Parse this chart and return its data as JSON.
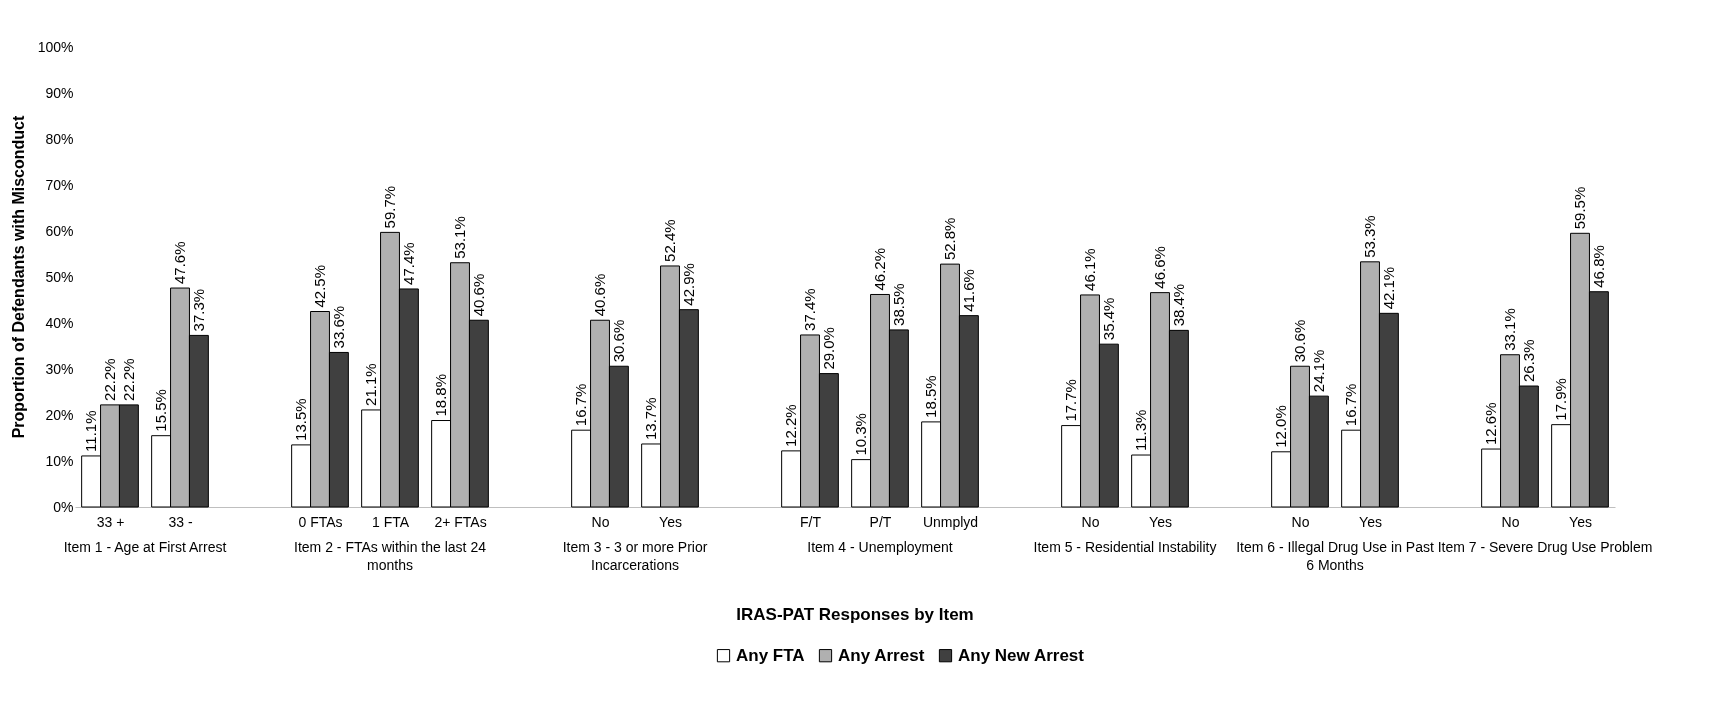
{
  "chart_data": {
    "type": "bar",
    "xlabel": "IRAS-PAT Responses by Item",
    "ylabel": "Proportion of Defendants with Misconduct",
    "categories": [
      "33 +",
      "33 -",
      null,
      "0 FTAs",
      "1 FTA",
      "2+ FTAs",
      null,
      "No",
      "Yes",
      null,
      "F/T",
      "P/T",
      "Unmplyd",
      null,
      "No",
      "Yes",
      null,
      "No",
      "Yes",
      null,
      "No",
      "Yes"
    ],
    "annotations": [
      "Item 1 - Age at First Arrest",
      "Item 2 - FTAs within the last 24 months",
      "Item 3 - 3 or more Prior Incarcerations",
      "Item 4 - Unemployment",
      "Item 5 - Residential Instability",
      "Item 6 - Illegal Drug Use in Past 6 Months",
      "Item 7 - Severe Drug Use Problem"
    ],
    "series": [
      {
        "name": "Any FTA",
        "color": "#ffffff",
        "values": [
          11.1,
          15.5,
          null,
          13.5,
          21.1,
          18.8,
          null,
          16.7,
          13.7,
          null,
          12.2,
          10.3,
          18.5,
          null,
          17.7,
          11.3,
          null,
          12.0,
          16.7,
          null,
          12.6,
          17.9
        ],
        "value_labels": [
          "11.1%",
          "15.5%",
          null,
          "13.5%",
          "21.1%",
          "18.8%",
          null,
          "16.7%",
          "13.7%",
          null,
          "12.2%",
          "10.3%",
          "18.5%",
          null,
          "17.7%",
          "11.3%",
          null,
          "12.0%",
          "16.7%",
          null,
          "12.6%",
          "17.9%"
        ]
      },
      {
        "name": "Any Arrest",
        "color": "#b0b0b0",
        "values": [
          22.2,
          47.6,
          null,
          42.5,
          59.7,
          53.1,
          null,
          40.6,
          52.4,
          null,
          37.4,
          46.2,
          52.8,
          null,
          46.1,
          46.6,
          null,
          30.6,
          53.3,
          null,
          33.1,
          59.5
        ],
        "value_labels": [
          "22.2%",
          "47.6%",
          null,
          "42.5%",
          "59.7%",
          "53.1%",
          null,
          "40.6%",
          "52.4%",
          null,
          "37.4%",
          "46.2%",
          "52.8%",
          null,
          "46.1%",
          "46.6%",
          null,
          "30.6%",
          "53.3%",
          null,
          "33.1%",
          "59.5%"
        ]
      },
      {
        "name": "Any New Arrest",
        "color": "#404040",
        "values": [
          22.2,
          37.3,
          null,
          33.6,
          47.4,
          40.6,
          null,
          30.6,
          42.9,
          null,
          29.0,
          38.5,
          41.6,
          null,
          35.4,
          38.4,
          null,
          24.1,
          42.1,
          null,
          26.3,
          46.8
        ],
        "value_labels": [
          "22.2%",
          "37.3%",
          null,
          "33.6%",
          "47.4%",
          "40.6%",
          null,
          "30.6%",
          "42.9%",
          null,
          "29.0%",
          "38.5%",
          "41.6%",
          null,
          "35.4%",
          "38.4%",
          null,
          "24.1%",
          "42.1%",
          null,
          "26.3%",
          "46.8%"
        ]
      }
    ],
    "ylim": [
      0,
      100
    ],
    "yticks": [
      {
        "value": 0,
        "label": "0%"
      },
      {
        "value": 10,
        "label": "10%"
      },
      {
        "value": 20,
        "label": "20%"
      },
      {
        "value": 30,
        "label": "30%"
      },
      {
        "value": 40,
        "label": "40%"
      },
      {
        "value": 50,
        "label": "50%"
      },
      {
        "value": 60,
        "label": "60%"
      },
      {
        "value": 70,
        "label": "70%"
      },
      {
        "value": 80,
        "label": "80%"
      },
      {
        "value": 90,
        "label": "90%"
      },
      {
        "value": 100,
        "label": "100%"
      }
    ],
    "legend": "bottom"
  }
}
